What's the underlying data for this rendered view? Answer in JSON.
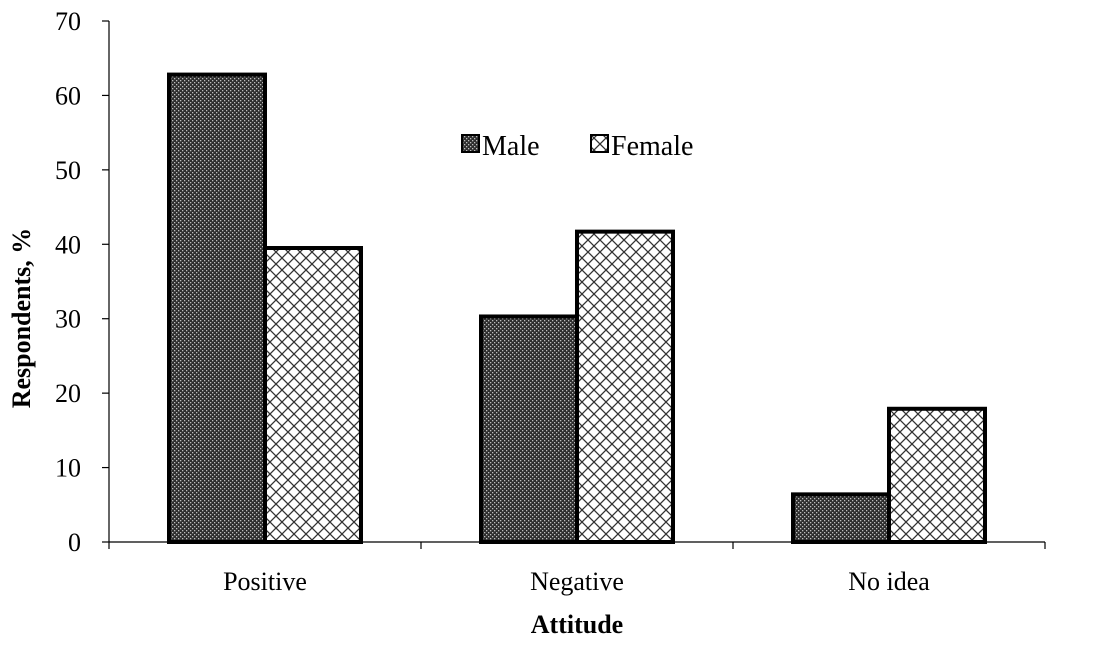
{
  "chart_data": {
    "type": "bar",
    "xlabel": "Attitude",
    "ylabel": "Respondents, %",
    "categories": [
      "Positive",
      "Negative",
      "No idea"
    ],
    "series": [
      {
        "name": "Male",
        "values": [
          62.8,
          30.3,
          6.4
        ],
        "pattern": "dots",
        "color": "#3a3a3a"
      },
      {
        "name": "Female",
        "values": [
          39.5,
          41.7,
          17.9
        ],
        "pattern": "crosshatch",
        "color": "#ffffff"
      }
    ],
    "ylim": [
      0,
      70
    ],
    "yticks": [
      0,
      10,
      20,
      30,
      40,
      50,
      60,
      70
    ],
    "legend_position": "top-center",
    "grid": false
  }
}
